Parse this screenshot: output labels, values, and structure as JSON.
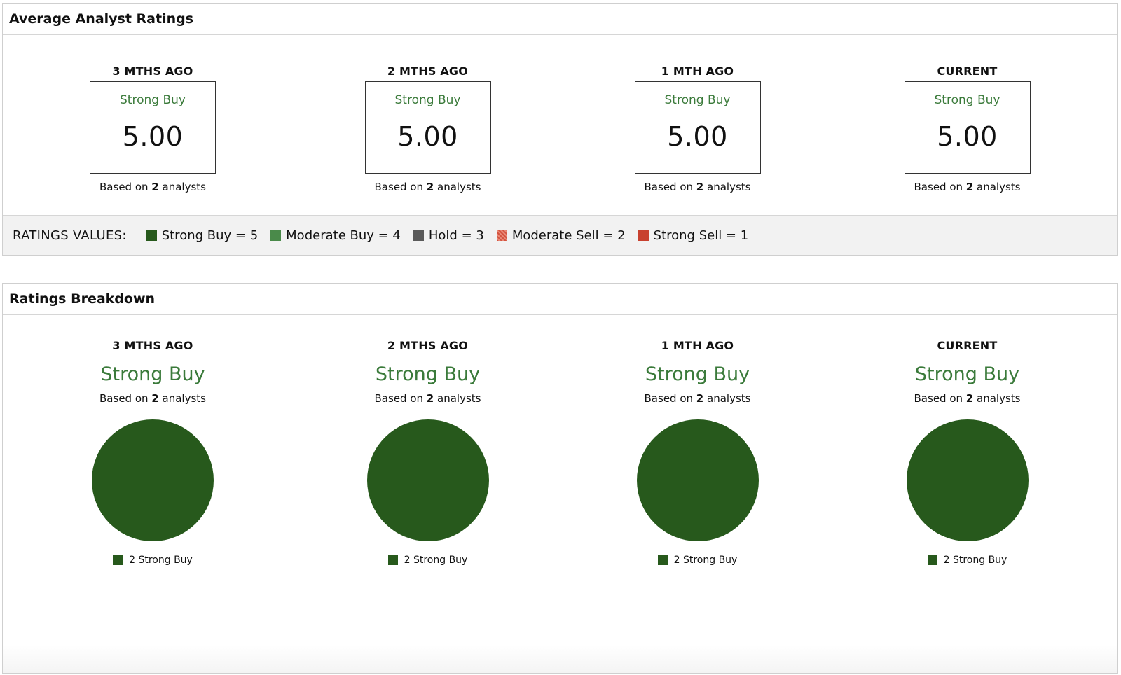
{
  "avg_panel": {
    "title": "Average Analyst Ratings",
    "columns": [
      {
        "period": "3 MTHS AGO",
        "rating": "Strong Buy",
        "score": "5.00",
        "based_prefix": "Based on",
        "analysts": "2",
        "based_suffix": "analysts"
      },
      {
        "period": "2 MTHS AGO",
        "rating": "Strong Buy",
        "score": "5.00",
        "based_prefix": "Based on",
        "analysts": "2",
        "based_suffix": "analysts"
      },
      {
        "period": "1 MTH AGO",
        "rating": "Strong Buy",
        "score": "5.00",
        "based_prefix": "Based on",
        "analysts": "2",
        "based_suffix": "analysts"
      },
      {
        "period": "CURRENT",
        "rating": "Strong Buy",
        "score": "5.00",
        "based_prefix": "Based on",
        "analysts": "2",
        "based_suffix": "analysts"
      }
    ],
    "legend": {
      "title": "RATINGS VALUES:",
      "items": [
        {
          "label": "Strong Buy = 5",
          "color": "#27591c"
        },
        {
          "label": "Moderate Buy = 4",
          "color": "#4a8a4a"
        },
        {
          "label": "Hold = 3",
          "color": "#5a5a5a"
        },
        {
          "label": "Moderate Sell = 2",
          "color": "#d4533f"
        },
        {
          "label": "Strong Sell = 1",
          "color": "#c8412f"
        }
      ]
    }
  },
  "breakdown_panel": {
    "title": "Ratings Breakdown",
    "columns": [
      {
        "period": "3 MTHS AGO",
        "rating": "Strong Buy",
        "based_prefix": "Based on",
        "analysts": "2",
        "based_suffix": "analysts",
        "legend_label": "2 Strong Buy"
      },
      {
        "period": "2 MTHS AGO",
        "rating": "Strong Buy",
        "based_prefix": "Based on",
        "analysts": "2",
        "based_suffix": "analysts",
        "legend_label": "2 Strong Buy"
      },
      {
        "period": "1 MTH AGO",
        "rating": "Strong Buy",
        "based_prefix": "Based on",
        "analysts": "2",
        "based_suffix": "analysts",
        "legend_label": "2 Strong Buy"
      },
      {
        "period": "CURRENT",
        "rating": "Strong Buy",
        "based_prefix": "Based on",
        "analysts": "2",
        "based_suffix": "analysts",
        "legend_label": "2 Strong Buy"
      }
    ]
  },
  "chart_data": [
    {
      "type": "pie",
      "categories": [
        "Strong Buy"
      ],
      "values": [
        2
      ],
      "colors": [
        "#27591c"
      ]
    },
    {
      "type": "pie",
      "categories": [
        "Strong Buy"
      ],
      "values": [
        2
      ],
      "colors": [
        "#27591c"
      ]
    },
    {
      "type": "pie",
      "categories": [
        "Strong Buy"
      ],
      "values": [
        2
      ],
      "colors": [
        "#27591c"
      ]
    },
    {
      "type": "pie",
      "categories": [
        "Strong Buy"
      ],
      "values": [
        2
      ],
      "colors": [
        "#27591c"
      ]
    }
  ],
  "colors": {
    "strong_buy": "#27591c",
    "rating_text": "#3a7a3a"
  }
}
